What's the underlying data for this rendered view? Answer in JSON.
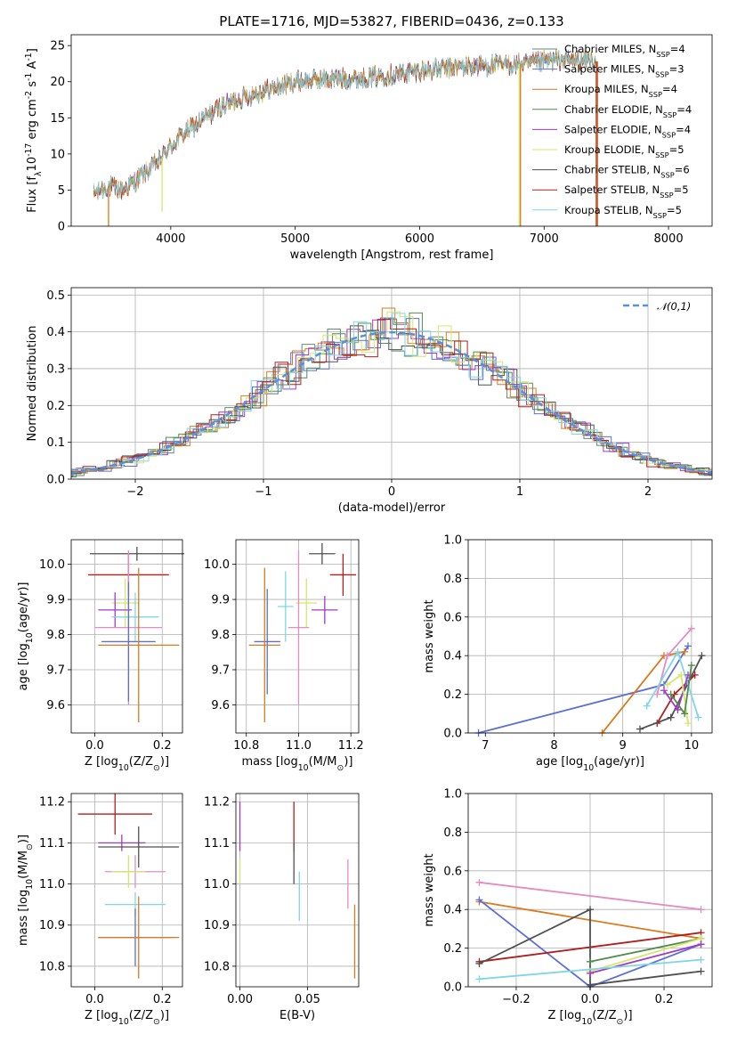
{
  "title": "PLATE=1716, MJD=53827, FIBERID=0436, z=0.133",
  "models": [
    {
      "name": "Chabrier MILES",
      "nssp": "4",
      "color": "#5b8c6e"
    },
    {
      "name": "Salpeter MILES",
      "nssp": "3",
      "color": "#5b6fd6"
    },
    {
      "name": "Kroupa MILES",
      "nssp": "4",
      "color": "#d97a1c"
    },
    {
      "name": "Chabrier ELODIE",
      "nssp": "4",
      "color": "#4e8c4e"
    },
    {
      "name": "Salpeter ELODIE",
      "nssp": "4",
      "color": "#a33ac4"
    },
    {
      "name": "Kroupa ELODIE",
      "nssp": "5",
      "color": "#d6e66b"
    },
    {
      "name": "Chabrier STELIB",
      "nssp": "6",
      "color": "#505050"
    },
    {
      "name": "Salpeter STELIB",
      "nssp": "5",
      "color": "#b01e1e"
    },
    {
      "name": "Kroupa STELIB",
      "nssp": "5",
      "color": "#7fd6e6"
    }
  ],
  "chart_data": [
    {
      "id": "spectrum",
      "type": "line",
      "xlabel": "wavelength [Angstrom, rest frame]",
      "ylabel": "Flux [f$_\\lambda$10$^{-17}$ erg cm$^{-2}$ s$^{-1}$ A$^{-1}$]",
      "xlim": [
        3200,
        8350
      ],
      "ylim": [
        0,
        26.5
      ],
      "xticks": [
        4000,
        5000,
        6000,
        7000,
        8000
      ],
      "yticks": [
        0,
        5,
        10,
        15,
        20,
        25
      ],
      "continuum_x": [
        3380,
        3500,
        3600,
        3700,
        3800,
        3900,
        4000,
        4100,
        4200,
        4300,
        4400,
        4500,
        4700,
        4900,
        5000,
        5200,
        5500,
        5800,
        6000,
        6300,
        6600,
        6900,
        7100,
        7300,
        7420
      ],
      "continuum_y": [
        4.5,
        5.5,
        5.0,
        6.0,
        7.5,
        9.0,
        11.0,
        12.8,
        14.0,
        15.3,
        16.5,
        17.3,
        18.5,
        19.5,
        20.0,
        20.3,
        20.5,
        21.0,
        21.5,
        22.0,
        22.3,
        22.5,
        23.0,
        23.0,
        22.8
      ],
      "drops": [
        {
          "x": 3500,
          "y": 0,
          "model": "Kroupa MILES"
        },
        {
          "x": 3930,
          "y": 2,
          "model": "Kroupa ELODIE"
        },
        {
          "x": 6800,
          "y": 0,
          "model": "Kroupa ELODIE"
        },
        {
          "x": 6810,
          "y": 0,
          "model": "Kroupa MILES"
        },
        {
          "x": 7420,
          "y": 0,
          "model": "Salpeter STELIB"
        },
        {
          "x": 7430,
          "y": 0,
          "model": "Kroupa MILES"
        }
      ]
    },
    {
      "id": "residuals",
      "type": "histogram",
      "xlabel": "(data-model)/error",
      "ylabel": "Normed distribution",
      "xlim": [
        -2.5,
        2.5
      ],
      "ylim": [
        0,
        0.52
      ],
      "xticks": [
        -2,
        -1,
        0,
        1,
        2
      ],
      "yticks": [
        0.0,
        0.1,
        0.2,
        0.3,
        0.4,
        0.5
      ],
      "bin_width": 0.1,
      "reference_label": "$\\mathcal{N}(0,1)$",
      "reference_color": "#5b8fd6"
    },
    {
      "id": "age-vs-Z",
      "type": "scatter",
      "xlabel": "Z [log$_{10}$(Z/Z$_\\odot$)]",
      "ylabel": "age  [log$_{10}$(age/yr)]",
      "xlim": [
        -0.07,
        0.26
      ],
      "ylim": [
        9.52,
        10.07
      ],
      "xticks": [
        0.0,
        0.2
      ],
      "yticks": [
        9.6,
        9.7,
        9.8,
        9.9,
        10.0
      ],
      "points": [
        {
          "model": "Chabrier STELIB",
          "x": 0.125,
          "xerr": 0.14,
          "y": 10.03,
          "yerr": 0.02
        },
        {
          "model": "Salpeter STELIB",
          "x": 0.1,
          "xerr": 0.12,
          "y": 9.97,
          "yerr": 0.06
        },
        {
          "model": "Kroupa ELODIE",
          "x": 0.09,
          "xerr": 0.04,
          "y": 9.89,
          "yerr": 0.07
        },
        {
          "model": "Salpeter ELODIE",
          "x": 0.06,
          "xerr": 0.05,
          "y": 9.87,
          "yerr": 0.05
        },
        {
          "model": "Kroupa STELIB",
          "x": 0.12,
          "xerr": 0.07,
          "y": 9.85,
          "yerr": 0.07
        },
        {
          "model": "Pink",
          "x": 0.1,
          "xerr": 0.1,
          "y": 9.82,
          "yerr": 0.22
        },
        {
          "model": "Salpeter MILES",
          "x": 0.1,
          "xerr": 0.08,
          "y": 9.78,
          "yerr": 0.17
        },
        {
          "model": "Kroupa MILES",
          "x": 0.13,
          "xerr": 0.12,
          "y": 9.77,
          "yerr": 0.22
        }
      ]
    },
    {
      "id": "age-vs-mass",
      "type": "scatter",
      "xlabel": "mass [log$_{10}$(M/M$_\\odot$)]",
      "ylabel": "",
      "xlim": [
        10.76,
        11.23
      ],
      "ylim": [
        9.52,
        10.07
      ],
      "xticks": [
        10.8,
        11.0,
        11.2
      ],
      "yticks": [
        9.6,
        9.7,
        9.8,
        9.9,
        10.0
      ],
      "points": [
        {
          "model": "Chabrier STELIB",
          "x": 11.09,
          "xerr": 0.05,
          "y": 10.03,
          "yerr": 0.03
        },
        {
          "model": "Salpeter STELIB",
          "x": 11.17,
          "xerr": 0.05,
          "y": 9.97,
          "yerr": 0.06
        },
        {
          "model": "Kroupa ELODIE",
          "x": 11.03,
          "xerr": 0.04,
          "y": 9.89,
          "yerr": 0.07
        },
        {
          "model": "Salpeter ELODIE",
          "x": 11.1,
          "xerr": 0.05,
          "y": 9.87,
          "yerr": 0.04
        },
        {
          "model": "Kroupa STELIB",
          "x": 10.95,
          "xerr": 0.03,
          "y": 9.88,
          "yerr": 0.1
        },
        {
          "model": "Pink",
          "x": 11.0,
          "xerr": 0.04,
          "y": 9.82,
          "yerr": 0.22
        },
        {
          "model": "Salpeter MILES",
          "x": 10.88,
          "xerr": 0.05,
          "y": 9.78,
          "yerr": 0.15
        },
        {
          "model": "Kroupa MILES",
          "x": 10.87,
          "xerr": 0.06,
          "y": 9.77,
          "yerr": 0.22
        }
      ]
    },
    {
      "id": "weight-vs-age",
      "type": "line",
      "xlabel": "age  [log$_{10}$(age/yr)]",
      "ylabel": "mass weight",
      "xlim": [
        6.75,
        10.3
      ],
      "ylim": [
        0,
        1.0
      ],
      "xticks": [
        7,
        8,
        9,
        10
      ],
      "yticks": [
        0.0,
        0.2,
        0.4,
        0.6,
        0.8,
        1.0
      ],
      "series": [
        {
          "model": "Salpeter MILES",
          "x": [
            6.9,
            9.6,
            9.95
          ],
          "y": [
            0.0,
            0.25,
            0.45
          ]
        },
        {
          "model": "Kroupa MILES",
          "x": [
            8.7,
            9.6,
            9.9
          ],
          "y": [
            0.0,
            0.4,
            0.42
          ]
        },
        {
          "model": "Pink",
          "x": [
            9.5,
            9.65,
            10.0
          ],
          "y": [
            0.2,
            0.4,
            0.54
          ]
        },
        {
          "model": "Salpeter STELIB",
          "x": [
            9.5,
            9.75,
            10.05
          ],
          "y": [
            0.05,
            0.2,
            0.3
          ]
        },
        {
          "model": "Chabrier STELIB",
          "x": [
            9.25,
            9.7,
            10.15
          ],
          "y": [
            0.02,
            0.08,
            0.4
          ]
        },
        {
          "model": "Kroupa STELIB",
          "x": [
            9.35,
            9.8,
            10.1
          ],
          "y": [
            0.14,
            0.42,
            0.08
          ]
        },
        {
          "model": "Salpeter ELODIE",
          "x": [
            9.6,
            9.8,
            9.95
          ],
          "y": [
            0.22,
            0.12,
            0.3
          ]
        },
        {
          "model": "Kroupa ELODIE",
          "x": [
            9.65,
            9.85,
            9.95
          ],
          "y": [
            0.25,
            0.3,
            0.05
          ]
        },
        {
          "model": "Chabrier ELODIE",
          "x": [
            9.7,
            9.9,
            10.0
          ],
          "y": [
            0.2,
            0.1,
            0.35
          ]
        }
      ]
    },
    {
      "id": "mass-vs-Z",
      "type": "scatter",
      "xlabel": "Z [log$_{10}$(Z/Z$_\\odot$)]",
      "ylabel": "mass [log$_{10}$(M/M$_\\odot$)]",
      "xlim": [
        -0.07,
        0.26
      ],
      "ylim": [
        10.75,
        11.22
      ],
      "xticks": [
        0.0,
        0.2
      ],
      "yticks": [
        10.8,
        10.9,
        11.0,
        11.1,
        11.2
      ],
      "points": [
        {
          "model": "Salpeter STELIB",
          "x": 0.06,
          "xerr": 0.11,
          "y": 11.17,
          "yerr": 0.05
        },
        {
          "model": "Salpeter ELODIE",
          "x": 0.08,
          "xerr": 0.07,
          "y": 11.1,
          "yerr": 0.02
        },
        {
          "model": "Chabrier STELIB",
          "x": 0.13,
          "xerr": 0.12,
          "y": 11.09,
          "yerr": 0.05
        },
        {
          "model": "Pink",
          "x": 0.12,
          "xerr": 0.09,
          "y": 11.03,
          "yerr": 0.04
        },
        {
          "model": "Kroupa ELODIE",
          "x": 0.1,
          "xerr": 0.05,
          "y": 11.03,
          "yerr": 0.04
        },
        {
          "model": "Kroupa STELIB",
          "x": 0.12,
          "xerr": 0.09,
          "y": 10.95,
          "yerr": 0.03
        },
        {
          "model": "Salpeter MILES",
          "x": 0.12,
          "xerr": 0.11,
          "y": 10.87,
          "yerr": 0.07
        },
        {
          "model": "Kroupa MILES",
          "x": 0.13,
          "xerr": 0.12,
          "y": 10.87,
          "yerr": 0.1
        }
      ]
    },
    {
      "id": "mass-vs-EBV",
      "type": "scatter",
      "xlabel": "E(B-V)",
      "ylabel": "",
      "xlim": [
        -0.003,
        0.088
      ],
      "ylim": [
        10.75,
        11.22
      ],
      "xticks": [
        0.0,
        0.05
      ],
      "yticks": [
        10.8,
        10.9,
        11.0,
        11.1,
        11.2
      ],
      "points": [
        {
          "model": "Salpeter ELODIE",
          "x": 0.0,
          "y": 11.14,
          "yerr": 0.06
        },
        {
          "model": "Kroupa ELODIE",
          "x": 0.0,
          "y": 11.03,
          "yerr": 0.03
        },
        {
          "model": "Salpeter STELIB",
          "x": 0.04,
          "y": 11.14,
          "yerr": 0.06
        },
        {
          "model": "Chabrier STELIB",
          "x": 0.04,
          "y": 11.05,
          "yerr": 0.05
        },
        {
          "model": "Kroupa STELIB",
          "x": 0.044,
          "y": 10.97,
          "yerr": 0.06
        },
        {
          "model": "Pink",
          "x": 0.08,
          "y": 11.0,
          "yerr": 0.06
        },
        {
          "model": "Kroupa MILES",
          "x": 0.085,
          "y": 10.86,
          "yerr": 0.09
        }
      ]
    },
    {
      "id": "weight-vs-Z",
      "type": "line",
      "xlabel": "Z [log$_{10}$(Z/Z$_\\odot$)]",
      "ylabel": "mass weight",
      "xlim": [
        -0.33,
        0.33
      ],
      "ylim": [
        0,
        1.0
      ],
      "xticks": [
        -0.2,
        0.0,
        0.2
      ],
      "yticks": [
        0.0,
        0.2,
        0.4,
        0.6,
        0.8,
        1.0
      ],
      "series": [
        {
          "model": "Pink",
          "x": [
            -0.3,
            0.3
          ],
          "y": [
            0.54,
            0.4
          ]
        },
        {
          "model": "Kroupa MILES",
          "x": [
            -0.3,
            0.3
          ],
          "y": [
            0.44,
            0.25
          ]
        },
        {
          "model": "Salpeter MILES",
          "x": [
            -0.3,
            0.0,
            0.3
          ],
          "y": [
            0.45,
            0.0,
            0.22
          ]
        },
        {
          "model": "Salpeter STELIB",
          "x": [
            -0.3,
            0.3
          ],
          "y": [
            0.13,
            0.28
          ]
        },
        {
          "model": "Chabrier STELIB",
          "x": [
            -0.3,
            0.0,
            0.0,
            0.3
          ],
          "y": [
            0.12,
            0.4,
            0.01,
            0.08
          ]
        },
        {
          "model": "Chabrier ELODIE",
          "x": [
            0.0,
            0.3
          ],
          "y": [
            0.13,
            0.25
          ]
        },
        {
          "model": "Kroupa ELODIE",
          "x": [
            0.0,
            0.3
          ],
          "y": [
            0.08,
            0.25
          ]
        },
        {
          "model": "Salpeter ELODIE",
          "x": [
            0.0,
            0.3
          ],
          "y": [
            0.07,
            0.22
          ]
        },
        {
          "model": "Kroupa STELIB",
          "x": [
            -0.3,
            0.3
          ],
          "y": [
            0.04,
            0.14
          ]
        }
      ]
    }
  ],
  "pink_color": "#e58bc0"
}
